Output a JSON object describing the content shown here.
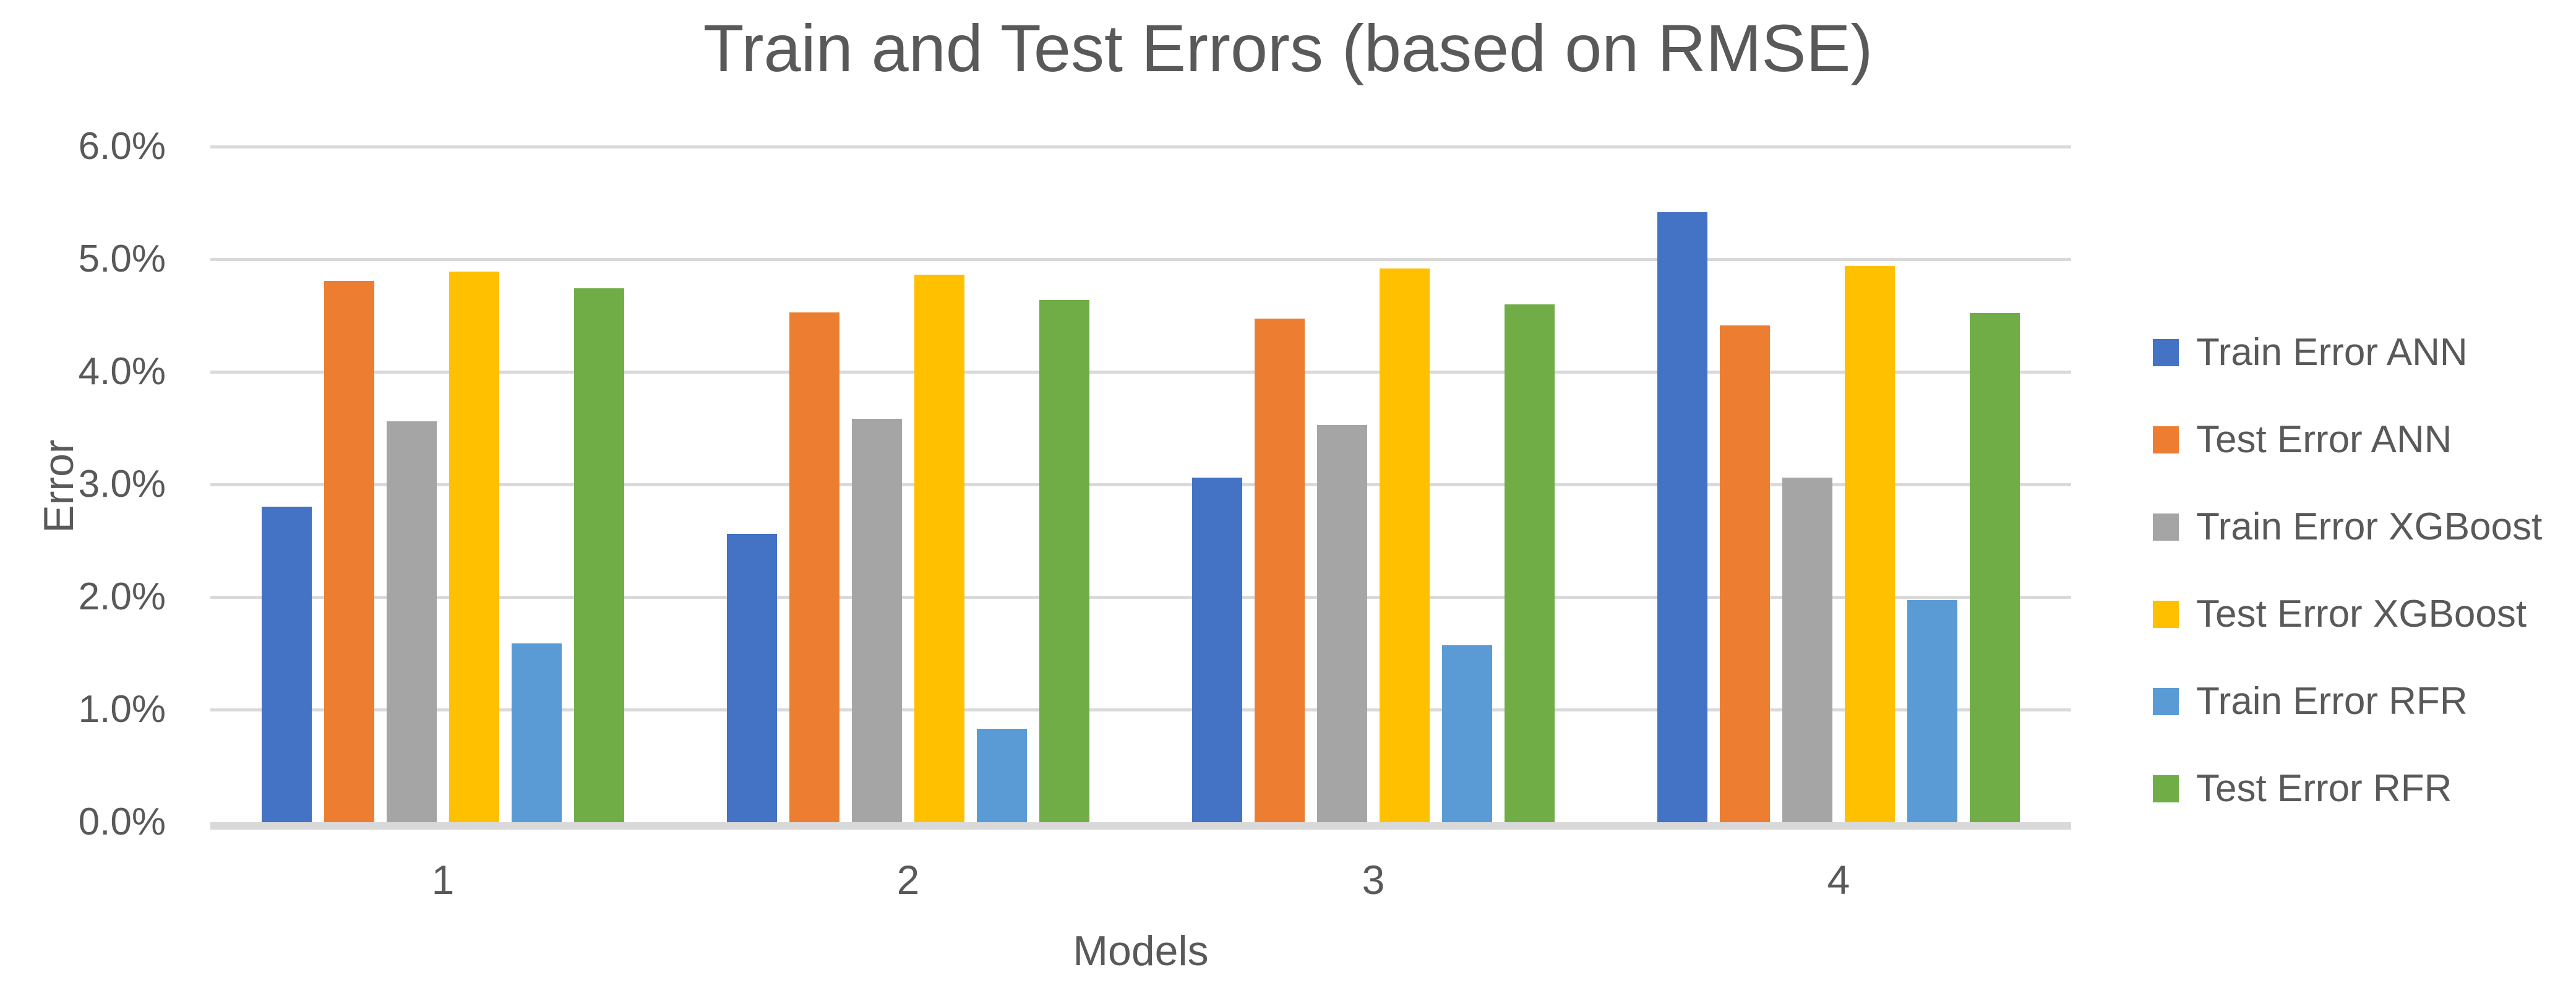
{
  "chart_data": {
    "type": "bar",
    "title": "Train and Test Errors (based on RMSE)",
    "xlabel": "Models",
    "ylabel": "Error",
    "categories": [
      "1",
      "2",
      "3",
      "4"
    ],
    "series": [
      {
        "name": "Train Error ANN",
        "color": "#4472C4",
        "values": [
          2.8,
          2.56,
          3.06,
          5.42
        ]
      },
      {
        "name": "Test Error ANN",
        "color": "#ED7D31",
        "values": [
          4.81,
          4.53,
          4.47,
          4.41
        ]
      },
      {
        "name": "Train Error XGBoost",
        "color": "#A5A5A5",
        "values": [
          3.56,
          3.58,
          3.53,
          3.06
        ]
      },
      {
        "name": "Test Error XGBoost",
        "color": "#FFC000",
        "values": [
          4.89,
          4.86,
          4.92,
          4.94
        ]
      },
      {
        "name": "Train Error RFR",
        "color": "#5B9BD5",
        "values": [
          1.59,
          0.83,
          1.57,
          1.97
        ]
      },
      {
        "name": "Test Error RFR",
        "color": "#70AD47",
        "values": [
          4.74,
          4.64,
          4.6,
          4.52
        ]
      }
    ],
    "ylim": [
      0,
      6
    ],
    "ytick_step": 1,
    "ytick_labels": [
      "0.0%",
      "1.0%",
      "2.0%",
      "3.0%",
      "4.0%",
      "5.0%",
      "6.0%"
    ],
    "value_unit": "percent",
    "grid": true,
    "legend_position": "right"
  },
  "colors": {
    "text": "#595959",
    "gridline": "#D9D9D9",
    "axis_line": "#D9D9D9",
    "background": "#FFFFFF"
  }
}
